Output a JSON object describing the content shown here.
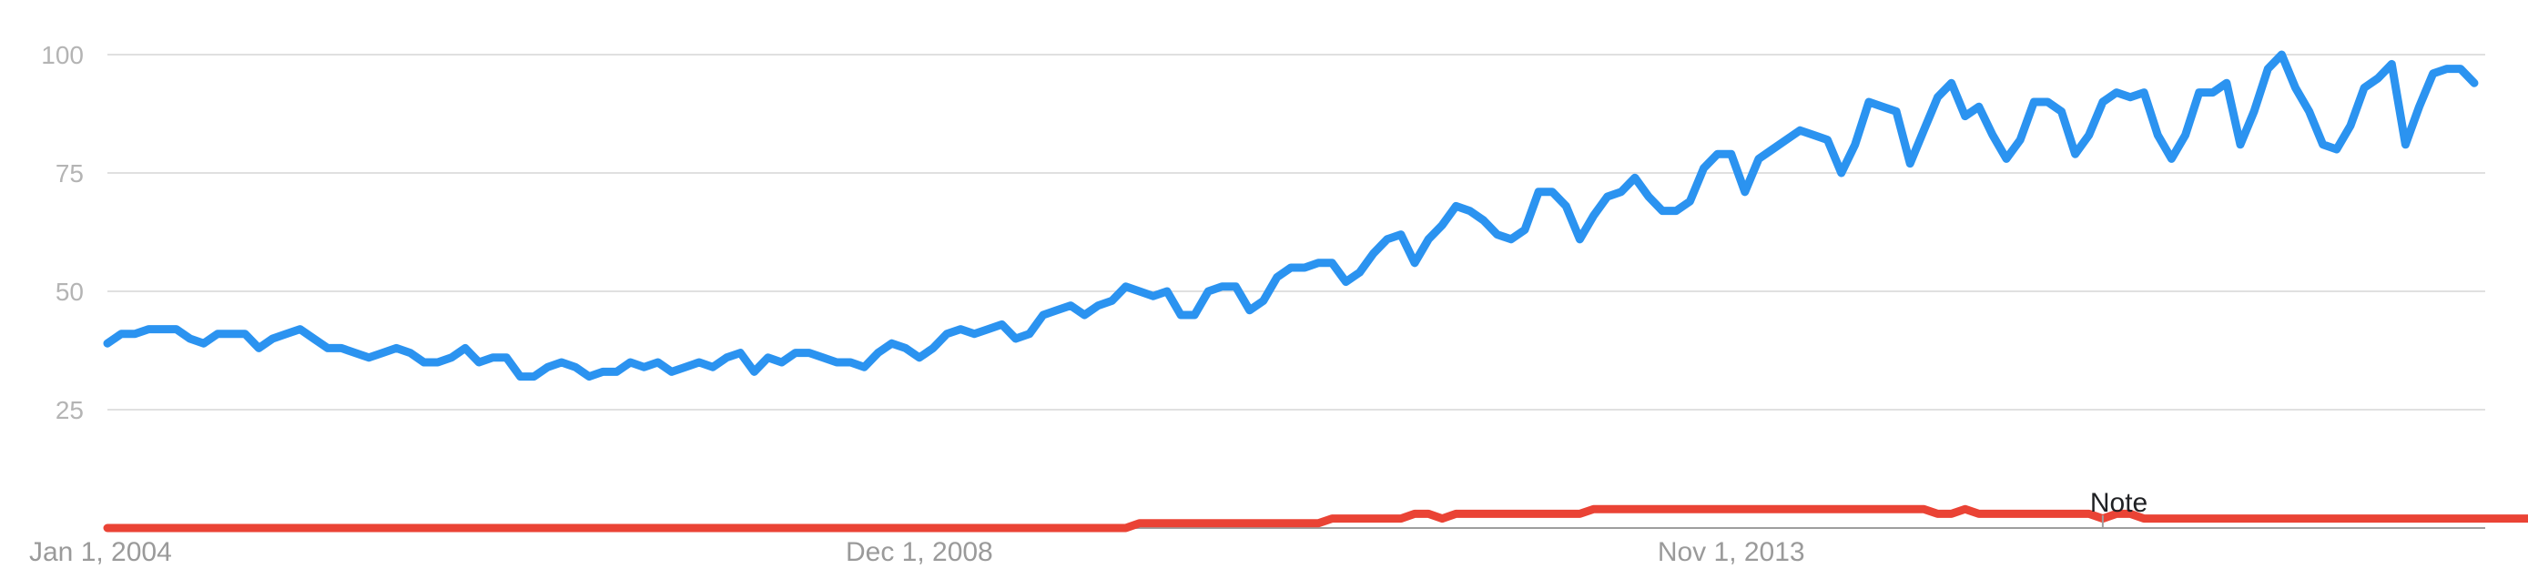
{
  "chart_data": {
    "type": "line",
    "title": "",
    "xlabel": "",
    "ylabel": "",
    "ylim": [
      0,
      100
    ],
    "yticks": [
      100,
      75,
      50,
      25
    ],
    "x_tick_labels": [
      "Jan 1, 2004",
      "Dec 1, 2008",
      "Nov 1, 2013"
    ],
    "x_tick_index": [
      0,
      59,
      118
    ],
    "grid": true,
    "annotation": {
      "text": "Note",
      "index": 145
    },
    "series": [
      {
        "color": "#2b93f0",
        "values": [
          39,
          41,
          41,
          42,
          42,
          42,
          40,
          39,
          41,
          41,
          41,
          38,
          40,
          41,
          42,
          40,
          38,
          38,
          37,
          36,
          37,
          38,
          37,
          35,
          35,
          36,
          38,
          35,
          36,
          36,
          32,
          32,
          34,
          35,
          34,
          32,
          33,
          33,
          35,
          34,
          35,
          33,
          34,
          35,
          34,
          36,
          37,
          33,
          36,
          35,
          37,
          37,
          36,
          35,
          35,
          34,
          37,
          39,
          38,
          36,
          38,
          41,
          42,
          41,
          42,
          43,
          40,
          41,
          45,
          46,
          47,
          45,
          47,
          48,
          51,
          50,
          49,
          50,
          45,
          45,
          50,
          51,
          51,
          46,
          48,
          53,
          55,
          55,
          56,
          56,
          52,
          54,
          58,
          61,
          62,
          56,
          61,
          64,
          68,
          67,
          65,
          62,
          61,
          63,
          71,
          71,
          68,
          61,
          66,
          70,
          71,
          74,
          70,
          67,
          67,
          69,
          76,
          79,
          79,
          71,
          78,
          80,
          82,
          84,
          83,
          82,
          75,
          81,
          90,
          89,
          88,
          77,
          84,
          91,
          94,
          87,
          89,
          83,
          78,
          82,
          90,
          90,
          88,
          79,
          83,
          90,
          92,
          91,
          92,
          83,
          78,
          83,
          92,
          92,
          94,
          81,
          88,
          97,
          100,
          93,
          88,
          81,
          80,
          85,
          93,
          95,
          98,
          81,
          89,
          96,
          97,
          97,
          94
        ],
        "stroke": "#2b93f0"
      },
      {
        "color": "#ea4335",
        "values": [
          0,
          0,
          0,
          0,
          0,
          0,
          0,
          0,
          0,
          0,
          0,
          0,
          0,
          0,
          0,
          0,
          0,
          0,
          0,
          0,
          0,
          0,
          0,
          0,
          0,
          0,
          0,
          0,
          0,
          0,
          0,
          0,
          0,
          0,
          0,
          0,
          0,
          0,
          0,
          0,
          0,
          0,
          0,
          0,
          0,
          0,
          0,
          0,
          0,
          0,
          0,
          0,
          0,
          0,
          0,
          0,
          0,
          0,
          0,
          0,
          0,
          0,
          0,
          0,
          0,
          0,
          0,
          0,
          0,
          0,
          0,
          0,
          0,
          0,
          0,
          1,
          1,
          1,
          1,
          1,
          1,
          1,
          1,
          1,
          1,
          1,
          1,
          1,
          1,
          2,
          2,
          2,
          2,
          2,
          2,
          3,
          3,
          2,
          3,
          3,
          3,
          3,
          3,
          3,
          3,
          3,
          3,
          3,
          4,
          4,
          4,
          4,
          4,
          4,
          4,
          4,
          4,
          4,
          4,
          4,
          4,
          4,
          4,
          4,
          4,
          4,
          4,
          4,
          4,
          4,
          4,
          4,
          4,
          3,
          3,
          4,
          3,
          3,
          3,
          3,
          3,
          3,
          3,
          3,
          3,
          2,
          3,
          3,
          2,
          2,
          2,
          2,
          2,
          2,
          2,
          2,
          2,
          2,
          2,
          2,
          2,
          2,
          2,
          2,
          2,
          2,
          2,
          2,
          2,
          2,
          2,
          2,
          2,
          2,
          2,
          2,
          2
        ]
      }
    ]
  }
}
